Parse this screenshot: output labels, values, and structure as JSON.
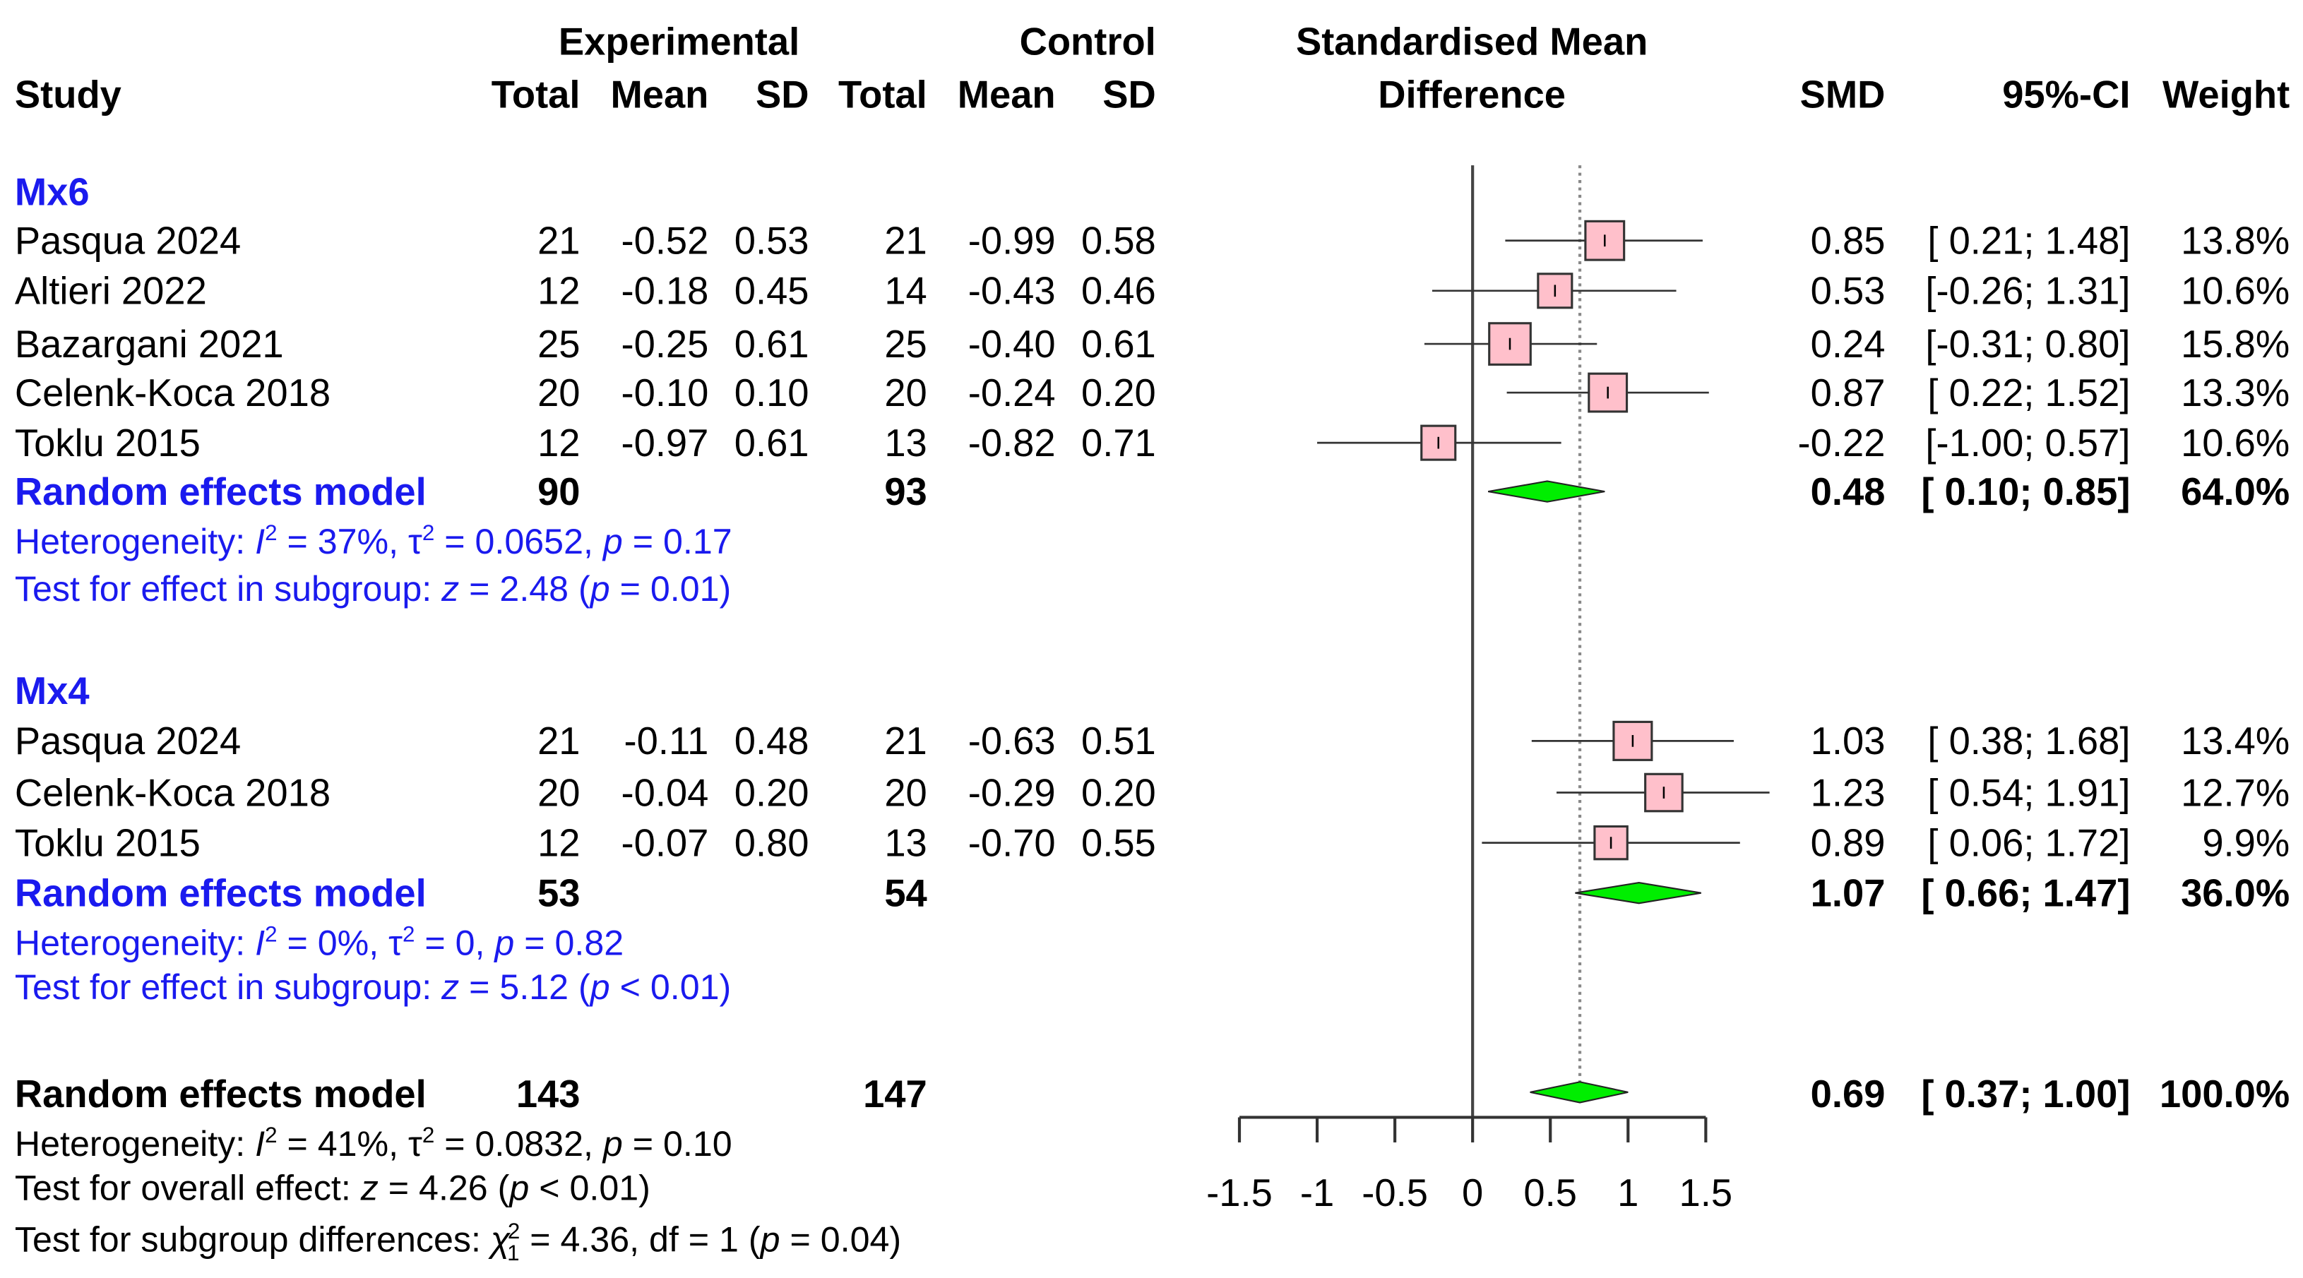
{
  "colors": {
    "group": "#1a1aee",
    "box_fill": "#ffc0cb",
    "box_stroke": "#333333",
    "diamond_fill": "#00ee00",
    "axis": "#333333"
  },
  "headers": {
    "experimental": "Experimental",
    "control": "Control",
    "study": "Study",
    "total": "Total",
    "mean": "Mean",
    "sd": "SD",
    "smd_title_1": "Standardised Mean",
    "smd_title_2": "Difference",
    "smd": "SMD",
    "ci": "95%-CI",
    "weight": "Weight"
  },
  "groups": [
    {
      "name": "Mx6",
      "studies": [
        {
          "study": "Pasqua 2024",
          "e_total": "21",
          "e_mean": "-0.52",
          "e_sd": "0.53",
          "c_total": "21",
          "c_mean": "-0.99",
          "c_sd": "0.58",
          "smd": "0.85",
          "ci": "[ 0.21; 1.48]",
          "weight": "13.8%",
          "est": 0.85,
          "lo": 0.21,
          "hi": 1.48,
          "w": 13.8
        },
        {
          "study": "Altieri 2022",
          "e_total": "12",
          "e_mean": "-0.18",
          "e_sd": "0.45",
          "c_total": "14",
          "c_mean": "-0.43",
          "c_sd": "0.46",
          "smd": "0.53",
          "ci": "[-0.26; 1.31]",
          "weight": "10.6%",
          "est": 0.53,
          "lo": -0.26,
          "hi": 1.31,
          "w": 10.6
        },
        {
          "study": "Bazargani 2021",
          "e_total": "25",
          "e_mean": "-0.25",
          "e_sd": "0.61",
          "c_total": "25",
          "c_mean": "-0.40",
          "c_sd": "0.61",
          "smd": "0.24",
          "ci": "[-0.31; 0.80]",
          "weight": "15.8%",
          "est": 0.24,
          "lo": -0.31,
          "hi": 0.8,
          "w": 15.8
        },
        {
          "study": "Celenk-Koca 2018",
          "e_total": "20",
          "e_mean": "-0.10",
          "e_sd": "0.10",
          "c_total": "20",
          "c_mean": "-0.24",
          "c_sd": "0.20",
          "smd": "0.87",
          "ci": "[ 0.22; 1.52]",
          "weight": "13.3%",
          "est": 0.87,
          "lo": 0.22,
          "hi": 1.52,
          "w": 13.3
        },
        {
          "study": "Toklu 2015",
          "e_total": "12",
          "e_mean": "-0.97",
          "e_sd": "0.61",
          "c_total": "13",
          "c_mean": "-0.82",
          "c_sd": "0.71",
          "smd": "-0.22",
          "ci": "[-1.00; 0.57]",
          "weight": "10.6%",
          "est": -0.22,
          "lo": -1.0,
          "hi": 0.57,
          "w": 10.6
        }
      ],
      "model": {
        "label": "Random effects model",
        "e_total": "90",
        "c_total": "93",
        "smd": "0.48",
        "ci": "[ 0.10; 0.85]",
        "weight": "64.0%",
        "est": 0.48,
        "lo": 0.1,
        "hi": 0.85
      },
      "het": {
        "label": "Heterogeneity:",
        "I2": "37%",
        "tau2": "0.0652",
        "p": "0.17"
      },
      "test": {
        "label": "Test for effect in subgroup:",
        "z": "2.48",
        "p_op": "=",
        "p": "0.01"
      }
    },
    {
      "name": "Mx4",
      "studies": [
        {
          "study": "Pasqua 2024",
          "e_total": "21",
          "e_mean": "-0.11",
          "e_sd": "0.48",
          "c_total": "21",
          "c_mean": "-0.63",
          "c_sd": "0.51",
          "smd": "1.03",
          "ci": "[ 0.38; 1.68]",
          "weight": "13.4%",
          "est": 1.03,
          "lo": 0.38,
          "hi": 1.68,
          "w": 13.4
        },
        {
          "study": "Celenk-Koca 2018",
          "e_total": "20",
          "e_mean": "-0.04",
          "e_sd": "0.20",
          "c_total": "20",
          "c_mean": "-0.29",
          "c_sd": "0.20",
          "smd": "1.23",
          "ci": "[ 0.54; 1.91]",
          "weight": "12.7%",
          "est": 1.23,
          "lo": 0.54,
          "hi": 1.91,
          "w": 12.7
        },
        {
          "study": "Toklu 2015",
          "e_total": "12",
          "e_mean": "-0.07",
          "e_sd": "0.80",
          "c_total": "13",
          "c_mean": "-0.70",
          "c_sd": "0.55",
          "smd": "0.89",
          "ci": "[ 0.06; 1.72]",
          "weight": "9.9%",
          "est": 0.89,
          "lo": 0.06,
          "hi": 1.72,
          "w": 9.9
        }
      ],
      "model": {
        "label": "Random effects model",
        "e_total": "53",
        "c_total": "54",
        "smd": "1.07",
        "ci": "[ 0.66; 1.47]",
        "weight": "36.0%",
        "est": 1.07,
        "lo": 0.66,
        "hi": 1.47
      },
      "het": {
        "label": "Heterogeneity:",
        "I2": "0%",
        "tau2": "0",
        "p": "0.82"
      },
      "test": {
        "label": "Test for effect in subgroup:",
        "z": "5.12",
        "p_op": "<",
        "p": "0.01"
      }
    }
  ],
  "overall": {
    "model": {
      "label": "Random effects model",
      "e_total": "143",
      "c_total": "147",
      "smd": "0.69",
      "ci": "[ 0.37; 1.00]",
      "weight": "100.0%",
      "est": 0.69,
      "lo": 0.37,
      "hi": 1.0
    },
    "het": {
      "label": "Heterogeneity:",
      "I2": "41%",
      "tau2": "0.0832",
      "p": "0.10"
    },
    "test": {
      "label": "Test for overall effect:",
      "z": "4.26",
      "p_op": "<",
      "p": "0.01"
    },
    "subgroup": {
      "label": "Test for subgroup differences:",
      "chi2": "4.36",
      "df": "1",
      "p": "0.04"
    }
  },
  "chart_data": {
    "type": "forest",
    "xlabel": "Standardised Mean Difference",
    "xlim": [
      -1.5,
      1.5
    ],
    "ticks": [
      "-1.5",
      "-1",
      "-0.5",
      "0",
      "0.5",
      "1",
      "1.5"
    ],
    "tick_values": [
      -1.5,
      -1,
      -0.5,
      0,
      0.5,
      1,
      1.5
    ],
    "null_line": 0,
    "overall_line": 0.69
  }
}
